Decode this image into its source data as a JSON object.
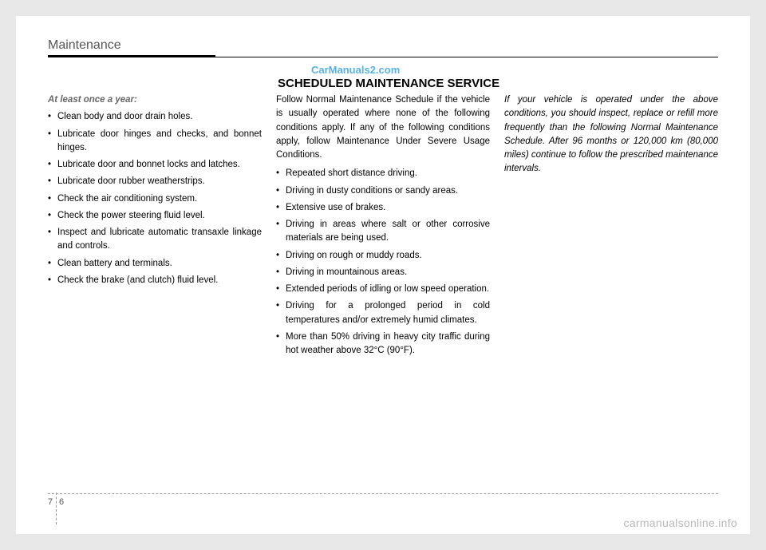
{
  "header": {
    "title": "Maintenance"
  },
  "watermark": {
    "top": "CarManuals2.com",
    "bottom": "carmanualsonline.info"
  },
  "section_title": "SCHEDULED MAINTENANCE SERVICE",
  "col1": {
    "subhead": "At least once a year:",
    "items": [
      "Clean body and door drain holes.",
      "Lubricate door hinges and checks, and bonnet hinges.",
      "Lubricate door and bonnet locks and latches.",
      "Lubricate door rubber weatherstrips.",
      "Check the air conditioning system.",
      "Check the power steering fluid level.",
      "Inspect and lubricate automatic transaxle linkage and controls.",
      "Clean battery and terminals.",
      "Check the brake (and clutch) fluid level."
    ]
  },
  "col2": {
    "intro": "Follow Normal Maintenance Schedule if the vehicle is usually operated where none of the following conditions apply. If any of the following conditions apply, follow Maintenance Under Severe Usage Conditions.",
    "items": [
      "Repeated short distance driving.",
      "Driving in dusty conditions or sandy areas.",
      "Extensive use of brakes.",
      "Driving in areas where salt or other corrosive materials are being used.",
      "Driving on rough or muddy roads.",
      "Driving in mountainous areas.",
      "Extended periods of idling or low speed operation.",
      "Driving for a prolonged period in cold temperatures and/or extremely humid climates.",
      "More than 50% driving in heavy city traffic during hot weather above 32°C (90°F)."
    ]
  },
  "col3": {
    "text": "If your vehicle is operated under the above conditions, you should inspect, replace or refill more frequently than the following Normal Maintenance Schedule. After 96 months or 120,000 km (80,000 miles) continue to follow the prescribed maintenance intervals."
  },
  "footer": {
    "left_num": "7",
    "right_num": "6"
  }
}
